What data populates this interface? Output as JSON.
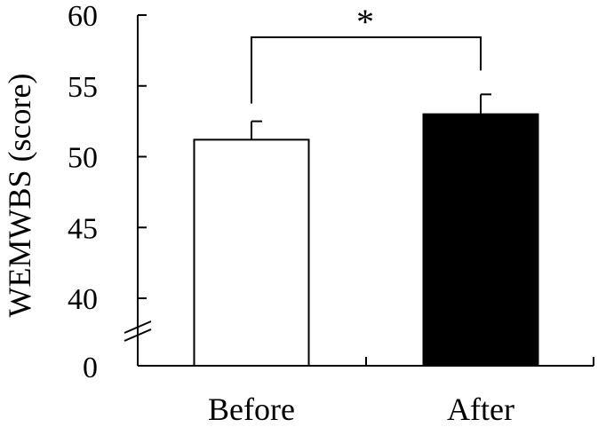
{
  "chart_data": {
    "type": "bar",
    "categories": [
      "Before",
      "After"
    ],
    "values": [
      51.2,
      53.0
    ],
    "error": [
      1.3,
      1.4
    ],
    "bar_colors": [
      "#ffffff",
      "#000000"
    ],
    "bar_edge_color": "#000000",
    "ylabel": "WEMWBS (score)",
    "ylim": [
      40,
      60
    ],
    "y_axis_break": true,
    "yticks": [
      "0",
      "40",
      "45",
      "50",
      "55",
      "60"
    ],
    "grid": false,
    "legend": "none",
    "annotation": {
      "type": "significance-bracket",
      "between": [
        "Before",
        "After"
      ],
      "label": "*"
    }
  }
}
